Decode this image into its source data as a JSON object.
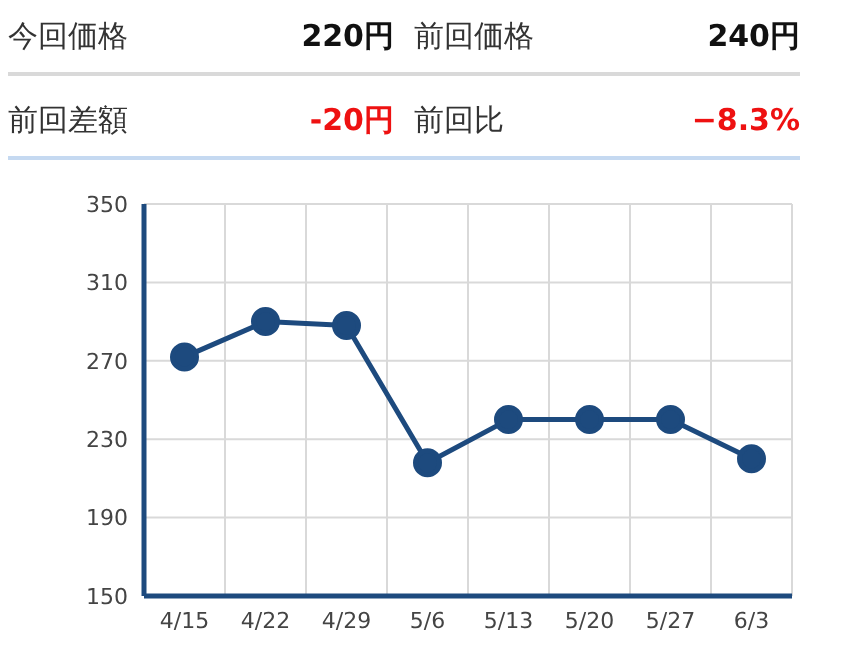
{
  "chart_data": {
    "type": "line",
    "categories": [
      "4/15",
      "4/22",
      "4/29",
      "5/6",
      "5/13",
      "5/20",
      "5/27",
      "6/3"
    ],
    "series": [
      {
        "color": "#1d4a7e",
        "values": [
          272,
          290,
          288,
          218,
          240,
          240,
          240,
          220
        ]
      }
    ],
    "ylim": [
      150,
      350
    ],
    "yticks": [
      150,
      190,
      230,
      270,
      310,
      350
    ],
    "grid": true,
    "marker": "circle",
    "line_style": "solid",
    "annotations": [
      "今回価格",
      "220円",
      "前回価格",
      "240円",
      "前回差額",
      "-20円",
      "前回比",
      "−8.3%"
    ]
  }
}
